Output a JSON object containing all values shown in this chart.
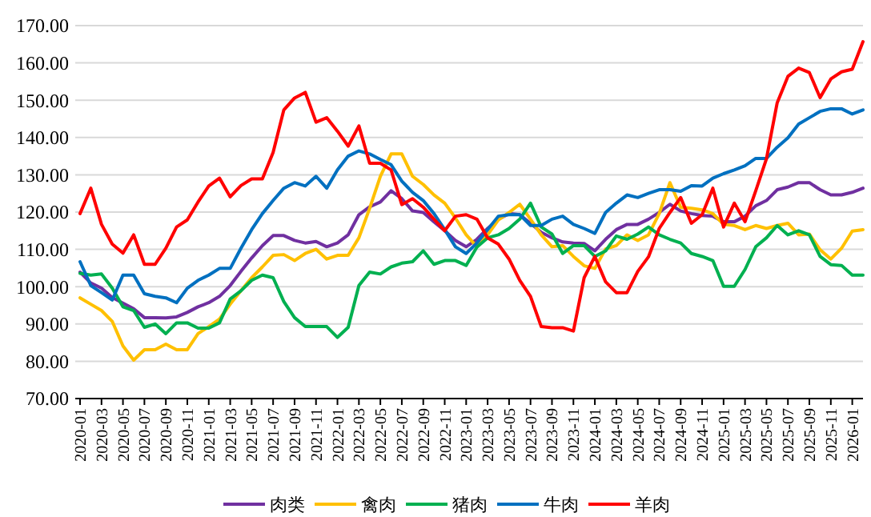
{
  "chart_data": {
    "type": "line",
    "categories": [
      "2020-01",
      null,
      "2020-03",
      null,
      "2020-05",
      null,
      "2020-07",
      null,
      "2020-09",
      null,
      "2020-11",
      null,
      "2021-01",
      null,
      "2021-03",
      null,
      "2021-05",
      null,
      "2021-07",
      null,
      "2021-09",
      null,
      "2021-11",
      null,
      "2022-01",
      null,
      "2022-03",
      null,
      "2022-05",
      null,
      "2022-07",
      null,
      "2022-09",
      null,
      "2022-11",
      null,
      "2023-01",
      null,
      "2023-03",
      null,
      "2023-05",
      null,
      "2023-07",
      null,
      "2023-09",
      null,
      "2023-11",
      null,
      "2024-01",
      null,
      "2024-03",
      null,
      "2024-05",
      null,
      "2024-07",
      null,
      "2024-09",
      null,
      "2024-11",
      null,
      "2025-01",
      null,
      "2025-03",
      null,
      "2025-05",
      null,
      "2025-07",
      null,
      "2025-09",
      null,
      "2025-11",
      null,
      "2026-01",
      null
    ],
    "series": [
      {
        "name": "肉类",
        "color": "#7030a0",
        "values": [
          103.9,
          101,
          99.6,
          97.1,
          95.6,
          94.1,
          91.7,
          91.7,
          91.6,
          91.9,
          93.1,
          94.6,
          95.7,
          97.4,
          100.3,
          104.1,
          107.7,
          111,
          113.7,
          113.7,
          112.4,
          111.7,
          112.1,
          110.7,
          111.7,
          113.9,
          119.3,
          121.4,
          122.7,
          125.7,
          123.6,
          120.3,
          119.9,
          117.4,
          115,
          112.4,
          110.7,
          112.7,
          115.6,
          118.1,
          119.6,
          119.3,
          117,
          114.6,
          113.1,
          112,
          111.7,
          111.6,
          109.6,
          112.7,
          115.3,
          116.7,
          116.7,
          118.1,
          119.9,
          122.1,
          120.3,
          119.6,
          119.1,
          118.9,
          117.4,
          117.4,
          118.9,
          121.7,
          123.1,
          126,
          126.7,
          127.9,
          127.9,
          126,
          124.6,
          124.6,
          125.3,
          126.4
        ]
      },
      {
        "name": "禽肉",
        "color": "#ffc000",
        "values": [
          97,
          95.3,
          93.6,
          90.7,
          84.1,
          80.3,
          83.1,
          83.1,
          84.6,
          83.1,
          83.1,
          87.4,
          89.3,
          91.3,
          95.3,
          98.9,
          102.4,
          105.3,
          108.4,
          108.6,
          107,
          108.9,
          110,
          107.4,
          108.4,
          108.4,
          113.1,
          121,
          129.6,
          135.6,
          135.6,
          129.6,
          127.4,
          124.6,
          122.4,
          118.4,
          113.9,
          110.7,
          113.9,
          117.9,
          119.9,
          122.1,
          118.1,
          113.9,
          110.7,
          111,
          108.1,
          105.6,
          104.9,
          110.1,
          111,
          113.9,
          112.4,
          113.9,
          119.6,
          127.9,
          121.3,
          121,
          120.6,
          119.6,
          116.7,
          116.4,
          115.3,
          116.4,
          115.6,
          116.4,
          117,
          113.9,
          114.1,
          109.9,
          107.4,
          110.3,
          114.9,
          115.3
        ]
      },
      {
        "name": "猪肉",
        "color": "#00b050",
        "values": [
          103.6,
          103.1,
          103.4,
          99.6,
          94.6,
          93.6,
          89.1,
          90,
          87.4,
          90.3,
          90.3,
          88.9,
          88.9,
          90.3,
          96.7,
          98.9,
          101.7,
          103.1,
          102.4,
          96,
          91.7,
          89.3,
          89.3,
          89.3,
          86.4,
          89.1,
          100.3,
          103.9,
          103.4,
          105.3,
          106.3,
          106.7,
          109.6,
          106,
          107,
          107,
          105.7,
          110.6,
          113.1,
          113.9,
          115.6,
          118.1,
          122.4,
          116,
          114.1,
          108.9,
          111,
          111,
          108.1,
          109.6,
          113.6,
          112.7,
          114.1,
          116,
          113.9,
          112.7,
          111.7,
          108.9,
          108.1,
          107,
          100.1,
          100.1,
          104.6,
          110.7,
          113.1,
          116.4,
          113.9,
          115,
          113.9,
          108.1,
          105.9,
          105.7,
          103.1,
          103.1
        ]
      },
      {
        "name": "牛肉",
        "color": "#0070c0",
        "values": [
          106.7,
          100.3,
          98.4,
          96.4,
          103.1,
          103.1,
          98.1,
          97.4,
          97,
          95.7,
          99.6,
          101.7,
          103.1,
          104.9,
          104.9,
          110.3,
          115.3,
          119.6,
          123.1,
          126.4,
          127.9,
          127,
          129.6,
          126.4,
          131.3,
          135,
          136.4,
          135.6,
          134.1,
          132.7,
          128.3,
          125.3,
          123.1,
          119.6,
          115.3,
          110.7,
          108.9,
          111.7,
          115.3,
          118.9,
          119.3,
          119.3,
          116.4,
          116.4,
          118.1,
          118.9,
          116.7,
          115.6,
          114.3,
          119.9,
          122.4,
          124.6,
          123.9,
          125,
          126,
          126,
          125.6,
          127.1,
          127,
          129.1,
          130.3,
          131.3,
          132.4,
          134.4,
          134.4,
          137.4,
          139.9,
          143.6,
          145.3,
          147,
          147.7,
          147.7,
          146.3,
          147.4
        ]
      },
      {
        "name": "羊肉",
        "color": "#ff0000",
        "values": [
          119.6,
          126.4,
          116.7,
          111.4,
          109,
          113.9,
          106,
          106,
          110.3,
          116,
          117.9,
          122.7,
          127,
          129.1,
          124.1,
          127.1,
          128.9,
          128.9,
          136,
          147.4,
          150.6,
          152.1,
          144.1,
          145.3,
          141.7,
          137.7,
          143.1,
          133.1,
          133.1,
          131.3,
          122,
          123.6,
          121.3,
          118.1,
          115,
          118.9,
          119.3,
          118.1,
          113.1,
          111.4,
          107.4,
          101.7,
          97.4,
          89.3,
          89,
          89,
          88.1,
          102.4,
          108.1,
          101.3,
          98.4,
          98.4,
          104.1,
          108,
          115.6,
          119.9,
          123.9,
          117,
          119.3,
          126.4,
          116,
          122.4,
          117.4,
          125.7,
          134.3,
          149.3,
          156.4,
          158.6,
          157.4,
          150.7,
          155.7,
          157.6,
          158.3,
          165.7
        ]
      }
    ],
    "ylim": [
      70,
      170
    ],
    "yticks": [
      {
        "value": 70,
        "label": "70.00"
      },
      {
        "value": 80,
        "label": "80.00"
      },
      {
        "value": 90,
        "label": "90.00"
      },
      {
        "value": 100,
        "label": "100.00"
      },
      {
        "value": 110,
        "label": "110.00"
      },
      {
        "value": 120,
        "label": "120.00"
      },
      {
        "value": 130,
        "label": "130.00"
      },
      {
        "value": 140,
        "label": "140.00"
      },
      {
        "value": 150,
        "label": "150.00"
      },
      {
        "value": 160,
        "label": "160.00"
      },
      {
        "value": 170,
        "label": "170.00"
      }
    ],
    "grid": "y",
    "legend": "bottom",
    "marker": "none",
    "line_style": "solid"
  }
}
